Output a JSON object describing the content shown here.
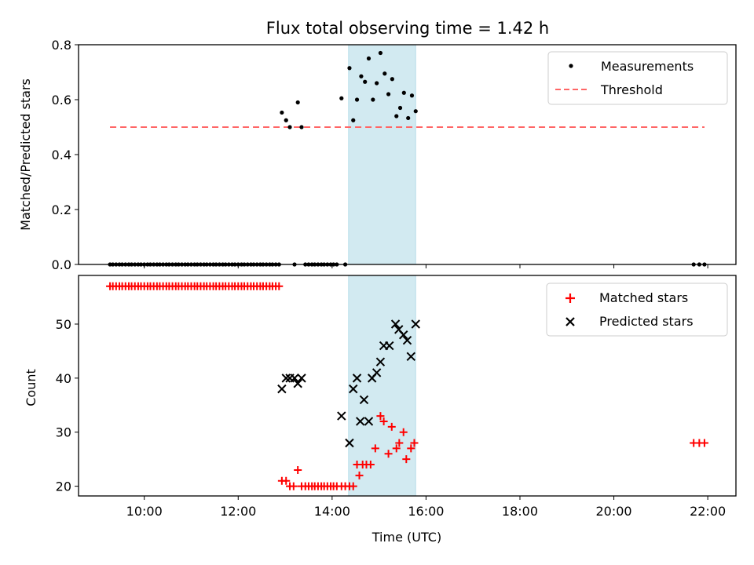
{
  "chart_data": [
    {
      "type": "scatter",
      "title": "Flux total observing time = 1.42 h",
      "xlabel": "",
      "ylabel": "Matched/Predicted stars",
      "ylim": [
        0,
        0.8
      ],
      "yticks": [
        "0.0",
        "0.2",
        "0.4",
        "0.6",
        "0.8"
      ],
      "shaded_interval_hours": [
        14.35,
        15.78
      ],
      "shade_color": "#add8e6",
      "legend_position": "top-right",
      "legend": [
        "Measurements",
        "Threshold"
      ],
      "threshold": {
        "name": "Threshold",
        "value": 0.5,
        "x_range_hours": [
          9.27,
          21.93
        ],
        "color": "#ff6666"
      },
      "series": [
        {
          "name": "Measurements",
          "color": "#000000",
          "points_hours": [
            [
              9.27,
              0
            ],
            [
              9.33,
              0
            ],
            [
              9.4,
              0
            ],
            [
              9.47,
              0
            ],
            [
              9.53,
              0
            ],
            [
              9.6,
              0
            ],
            [
              9.67,
              0
            ],
            [
              9.73,
              0
            ],
            [
              9.8,
              0
            ],
            [
              9.87,
              0
            ],
            [
              9.93,
              0
            ],
            [
              10.0,
              0
            ],
            [
              10.07,
              0
            ],
            [
              10.13,
              0
            ],
            [
              10.2,
              0
            ],
            [
              10.27,
              0
            ],
            [
              10.33,
              0
            ],
            [
              10.4,
              0
            ],
            [
              10.47,
              0
            ],
            [
              10.53,
              0
            ],
            [
              10.6,
              0
            ],
            [
              10.67,
              0
            ],
            [
              10.73,
              0
            ],
            [
              10.8,
              0
            ],
            [
              10.87,
              0
            ],
            [
              10.93,
              0
            ],
            [
              11.0,
              0
            ],
            [
              11.07,
              0
            ],
            [
              11.13,
              0
            ],
            [
              11.2,
              0
            ],
            [
              11.27,
              0
            ],
            [
              11.33,
              0
            ],
            [
              11.4,
              0
            ],
            [
              11.47,
              0
            ],
            [
              11.53,
              0
            ],
            [
              11.6,
              0
            ],
            [
              11.67,
              0
            ],
            [
              11.73,
              0
            ],
            [
              11.8,
              0
            ],
            [
              11.87,
              0
            ],
            [
              11.93,
              0
            ],
            [
              12.0,
              0
            ],
            [
              12.07,
              0
            ],
            [
              12.13,
              0
            ],
            [
              12.2,
              0
            ],
            [
              12.27,
              0
            ],
            [
              12.33,
              0
            ],
            [
              12.4,
              0
            ],
            [
              12.47,
              0
            ],
            [
              12.53,
              0
            ],
            [
              12.6,
              0
            ],
            [
              12.67,
              0
            ],
            [
              12.73,
              0
            ],
            [
              12.8,
              0
            ],
            [
              12.87,
              0
            ],
            [
              12.93,
              0.553
            ],
            [
              13.02,
              0.525
            ],
            [
              13.1,
              0.5
            ],
            [
              13.2,
              0
            ],
            [
              13.27,
              0.59
            ],
            [
              13.35,
              0.5
            ],
            [
              13.43,
              0
            ],
            [
              13.5,
              0
            ],
            [
              13.57,
              0
            ],
            [
              13.63,
              0
            ],
            [
              13.7,
              0
            ],
            [
              13.77,
              0
            ],
            [
              13.83,
              0
            ],
            [
              13.9,
              0
            ],
            [
              13.97,
              0
            ],
            [
              14.03,
              0
            ],
            [
              14.1,
              0
            ],
            [
              14.2,
              0.605
            ],
            [
              14.28,
              0
            ],
            [
              14.37,
              0.715
            ],
            [
              14.45,
              0.525
            ],
            [
              14.53,
              0.6
            ],
            [
              14.62,
              0.685
            ],
            [
              14.7,
              0.665
            ],
            [
              14.78,
              0.75
            ],
            [
              14.87,
              0.6
            ],
            [
              14.95,
              0.66
            ],
            [
              15.03,
              0.77
            ],
            [
              15.12,
              0.695
            ],
            [
              15.2,
              0.62
            ],
            [
              15.28,
              0.675
            ],
            [
              15.37,
              0.54
            ],
            [
              15.45,
              0.57
            ],
            [
              15.53,
              0.625
            ],
            [
              15.62,
              0.533
            ],
            [
              15.7,
              0.615
            ],
            [
              15.78,
              0.558
            ],
            [
              21.7,
              0
            ],
            [
              21.82,
              0
            ],
            [
              21.93,
              0
            ]
          ]
        }
      ]
    },
    {
      "type": "scatter",
      "title": "",
      "xlabel": "Time (UTC)",
      "ylabel": "Count",
      "ylim": [
        18.2,
        59.0
      ],
      "xlim_hours": [
        8.6,
        22.6
      ],
      "xticks": [
        "10:00",
        "12:00",
        "14:00",
        "16:00",
        "18:00",
        "20:00",
        "22:00"
      ],
      "yticks": [
        "20",
        "30",
        "40",
        "50"
      ],
      "shaded_interval_hours": [
        14.35,
        15.78
      ],
      "shade_color": "#add8e6",
      "legend_position": "top-right",
      "legend": [
        "Matched stars",
        "Predicted stars"
      ],
      "series": [
        {
          "name": "Matched stars",
          "marker": "+",
          "color": "#ff0000",
          "points_hours": [
            [
              9.27,
              57
            ],
            [
              9.33,
              57
            ],
            [
              9.4,
              57
            ],
            [
              9.47,
              57
            ],
            [
              9.53,
              57
            ],
            [
              9.6,
              57
            ],
            [
              9.67,
              57
            ],
            [
              9.73,
              57
            ],
            [
              9.8,
              57
            ],
            [
              9.87,
              57
            ],
            [
              9.93,
              57
            ],
            [
              10.0,
              57
            ],
            [
              10.07,
              57
            ],
            [
              10.13,
              57
            ],
            [
              10.2,
              57
            ],
            [
              10.27,
              57
            ],
            [
              10.33,
              57
            ],
            [
              10.4,
              57
            ],
            [
              10.47,
              57
            ],
            [
              10.53,
              57
            ],
            [
              10.6,
              57
            ],
            [
              10.67,
              57
            ],
            [
              10.73,
              57
            ],
            [
              10.8,
              57
            ],
            [
              10.87,
              57
            ],
            [
              10.93,
              57
            ],
            [
              11.0,
              57
            ],
            [
              11.07,
              57
            ],
            [
              11.13,
              57
            ],
            [
              11.2,
              57
            ],
            [
              11.27,
              57
            ],
            [
              11.33,
              57
            ],
            [
              11.4,
              57
            ],
            [
              11.47,
              57
            ],
            [
              11.53,
              57
            ],
            [
              11.6,
              57
            ],
            [
              11.67,
              57
            ],
            [
              11.73,
              57
            ],
            [
              11.8,
              57
            ],
            [
              11.87,
              57
            ],
            [
              11.93,
              57
            ],
            [
              12.0,
              57
            ],
            [
              12.07,
              57
            ],
            [
              12.13,
              57
            ],
            [
              12.2,
              57
            ],
            [
              12.27,
              57
            ],
            [
              12.33,
              57
            ],
            [
              12.4,
              57
            ],
            [
              12.47,
              57
            ],
            [
              12.53,
              57
            ],
            [
              12.6,
              57
            ],
            [
              12.67,
              57
            ],
            [
              12.73,
              57
            ],
            [
              12.8,
              57
            ],
            [
              12.87,
              57
            ],
            [
              12.93,
              21
            ],
            [
              13.02,
              21
            ],
            [
              13.1,
              20
            ],
            [
              13.18,
              20
            ],
            [
              13.27,
              23
            ],
            [
              13.35,
              20
            ],
            [
              13.43,
              20
            ],
            [
              13.5,
              20
            ],
            [
              13.57,
              20
            ],
            [
              13.63,
              20
            ],
            [
              13.7,
              20
            ],
            [
              13.77,
              20
            ],
            [
              13.83,
              20
            ],
            [
              13.9,
              20
            ],
            [
              13.97,
              20
            ],
            [
              14.03,
              20
            ],
            [
              14.1,
              20
            ],
            [
              14.2,
              20
            ],
            [
              14.28,
              20
            ],
            [
              14.37,
              20
            ],
            [
              14.45,
              20
            ],
            [
              14.53,
              24
            ],
            [
              14.58,
              22
            ],
            [
              14.65,
              24
            ],
            [
              14.73,
              24
            ],
            [
              14.82,
              24
            ],
            [
              14.92,
              27
            ],
            [
              15.03,
              33
            ],
            [
              15.1,
              32
            ],
            [
              15.2,
              26
            ],
            [
              15.27,
              31
            ],
            [
              15.37,
              27
            ],
            [
              15.43,
              28
            ],
            [
              15.52,
              30
            ],
            [
              15.58,
              25
            ],
            [
              15.68,
              27
            ],
            [
              15.75,
              28
            ],
            [
              21.7,
              28
            ],
            [
              21.82,
              28
            ],
            [
              21.93,
              28
            ]
          ]
        },
        {
          "name": "Predicted stars",
          "marker": "x",
          "color": "#000000",
          "points_hours": [
            [
              12.93,
              38
            ],
            [
              13.02,
              40
            ],
            [
              13.1,
              40
            ],
            [
              13.2,
              40
            ],
            [
              13.27,
              39
            ],
            [
              13.35,
              40
            ],
            [
              14.2,
              33
            ],
            [
              14.37,
              28
            ],
            [
              14.45,
              38
            ],
            [
              14.53,
              40
            ],
            [
              14.6,
              32
            ],
            [
              14.68,
              36
            ],
            [
              14.78,
              32
            ],
            [
              14.85,
              40
            ],
            [
              14.95,
              41
            ],
            [
              15.03,
              43
            ],
            [
              15.1,
              46
            ],
            [
              15.22,
              46
            ],
            [
              15.35,
              50
            ],
            [
              15.42,
              49
            ],
            [
              15.52,
              48
            ],
            [
              15.6,
              47
            ],
            [
              15.68,
              44
            ],
            [
              15.78,
              50
            ]
          ]
        }
      ]
    }
  ]
}
